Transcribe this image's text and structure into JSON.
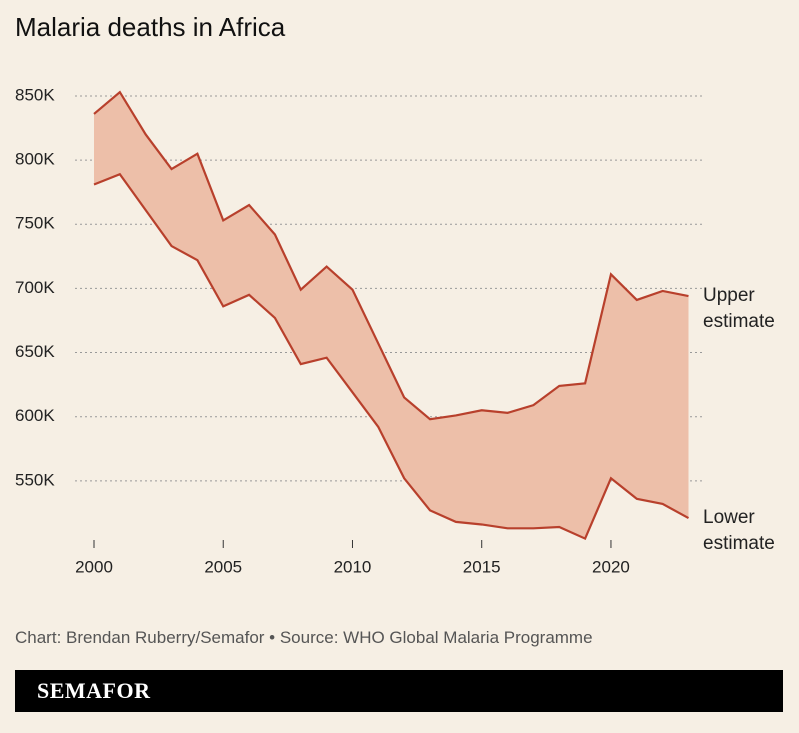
{
  "chart_data": {
    "type": "band",
    "title": "Malaria deaths in Africa",
    "source": "Chart: Brendan Ruberry/Semafor • Source: WHO Global Malaria Programme",
    "brand": "SEMAFOR",
    "x": [
      2000,
      2001,
      2002,
      2003,
      2004,
      2005,
      2006,
      2007,
      2008,
      2009,
      2010,
      2011,
      2012,
      2013,
      2014,
      2015,
      2016,
      2017,
      2018,
      2019,
      2020,
      2021,
      2022,
      2023
    ],
    "series": [
      {
        "name": "Upper estimate",
        "color": "#b8402c",
        "values": [
          836,
          853,
          820,
          793,
          805,
          753,
          765,
          742,
          699,
          717,
          699,
          657,
          615,
          598,
          601,
          605,
          603,
          609,
          624,
          626,
          711,
          691,
          698,
          694
        ]
      },
      {
        "name": "Lower estimate",
        "color": "#b8402c",
        "values": [
          781,
          789,
          761,
          733,
          722,
          686,
          695,
          677,
          641,
          646,
          619,
          592,
          552,
          527,
          518,
          516,
          513,
          513,
          514,
          505,
          552,
          536,
          532,
          521
        ]
      }
    ],
    "fill_color": "#edbfa9",
    "xlim": [
      2000,
      2023
    ],
    "xticks": [
      2000,
      2005,
      2010,
      2015,
      2020
    ],
    "ylim": [
      500,
      870
    ],
    "yticks": [
      {
        "value": 550,
        "label": "550K"
      },
      {
        "value": 600,
        "label": "600K"
      },
      {
        "value": 650,
        "label": "650K"
      },
      {
        "value": 700,
        "label": "700K"
      },
      {
        "value": 750,
        "label": "750K"
      },
      {
        "value": 800,
        "label": "800K"
      },
      {
        "value": 850,
        "label": "850K"
      }
    ],
    "grid": true
  }
}
